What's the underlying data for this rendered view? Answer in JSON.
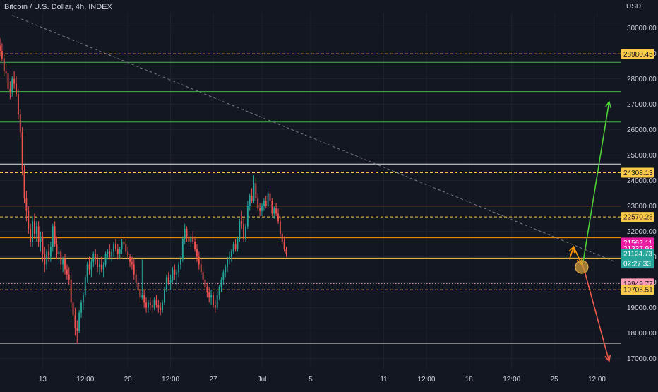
{
  "chart_data": {
    "type": "candlestick",
    "title": "Bitcoin / U.S. Dollar, 4h, INDEX",
    "currency": "USD",
    "ylim": [
      16600,
      30600
    ],
    "y_ticks": [
      17000,
      18000,
      19000,
      20000,
      21000,
      22000,
      23000,
      24000,
      25000,
      26000,
      27000,
      28000,
      29000,
      30000
    ],
    "y_tick_labels": [
      "17000.00",
      "18000.00",
      "19000.00",
      "20000.00",
      "21000.00",
      "22000.00",
      "23000.00",
      "24000.00",
      "25000.00",
      "26000.00",
      "27000.00",
      "28000.00",
      "29000.00",
      "30000.00"
    ],
    "x_labels": [
      {
        "label": "13",
        "t": "2022-06-13T00:00"
      },
      {
        "label": "12:00",
        "t": "2022-06-16T12:00"
      },
      {
        "label": "20",
        "t": "2022-06-20T00:00"
      },
      {
        "label": "12:00",
        "t": "2022-06-23T12:00"
      },
      {
        "label": "27",
        "t": "2022-06-27T00:00"
      },
      {
        "label": "Jul",
        "t": "2022-07-01T00:00"
      },
      {
        "label": "5",
        "t": "2022-07-05T00:00"
      },
      {
        "label": "11",
        "t": "2022-07-11T00:00"
      },
      {
        "label": "12:00",
        "t": "2022-07-14T12:00"
      },
      {
        "label": "18",
        "t": "2022-07-18T00:00"
      },
      {
        "label": "12:00",
        "t": "2022-07-21T12:00"
      },
      {
        "label": "25",
        "t": "2022-07-25T00:00"
      },
      {
        "label": "12:00",
        "t": "2022-07-28T12:00"
      }
    ],
    "x_range": [
      "2022-06-09T12:00",
      "2022-07-30T12:00"
    ],
    "candles": {
      "start": "2022-06-09T12:00",
      "interval_hours": 4,
      "ohlc": [
        [
          29300,
          29600,
          28900,
          29100
        ],
        [
          29100,
          29400,
          28700,
          28800
        ],
        [
          28800,
          29000,
          28100,
          28300
        ],
        [
          28300,
          28600,
          27900,
          28200
        ],
        [
          28200,
          28400,
          27400,
          27600
        ],
        [
          27600,
          27900,
          27200,
          27500
        ],
        [
          27500,
          28100,
          27300,
          28000
        ],
        [
          28000,
          28300,
          27600,
          27800
        ],
        [
          27800,
          28100,
          27300,
          27400
        ],
        [
          27400,
          27600,
          26400,
          26600
        ],
        [
          26600,
          26800,
          25700,
          25900
        ],
        [
          25900,
          26100,
          24200,
          24400
        ],
        [
          24400,
          24600,
          23100,
          23300
        ],
        [
          23300,
          23600,
          22400,
          22800
        ],
        [
          22800,
          23000,
          21900,
          22100
        ],
        [
          22100,
          22300,
          21400,
          21600
        ],
        [
          21600,
          22600,
          21400,
          22400
        ],
        [
          22400,
          22700,
          21700,
          21900
        ],
        [
          21900,
          22400,
          21600,
          22200
        ],
        [
          22200,
          22400,
          21400,
          21600
        ],
        [
          21600,
          22000,
          21200,
          21800
        ],
        [
          21800,
          22000,
          20800,
          21100
        ],
        [
          21100,
          21400,
          20400,
          20700
        ],
        [
          20700,
          21300,
          20500,
          21200
        ],
        [
          21200,
          21500,
          20800,
          21000
        ],
        [
          21000,
          21600,
          20800,
          21400
        ],
        [
          21400,
          22300,
          21200,
          22200
        ],
        [
          22200,
          22400,
          21400,
          21500
        ],
        [
          21500,
          21800,
          20900,
          21100
        ],
        [
          21100,
          21400,
          20700,
          21200
        ],
        [
          21200,
          21300,
          20500,
          20700
        ],
        [
          20700,
          21000,
          20400,
          20900
        ],
        [
          20900,
          21100,
          20300,
          20500
        ],
        [
          20500,
          20700,
          20100,
          20300
        ],
        [
          20300,
          20600,
          19900,
          20100
        ],
        [
          20100,
          20400,
          19000,
          19200
        ],
        [
          19200,
          19400,
          18500,
          18700
        ],
        [
          18700,
          19000,
          17900,
          18200
        ],
        [
          18200,
          18500,
          17600,
          18100
        ],
        [
          18100,
          18900,
          18000,
          18800
        ],
        [
          18800,
          19300,
          18600,
          19200
        ],
        [
          19200,
          19600,
          18900,
          19500
        ],
        [
          19500,
          20300,
          19400,
          20200
        ],
        [
          20200,
          20800,
          20000,
          20700
        ],
        [
          20700,
          21000,
          20300,
          20500
        ],
        [
          20500,
          20900,
          20200,
          20800
        ],
        [
          20800,
          21200,
          20600,
          21100
        ],
        [
          21100,
          21300,
          20700,
          20900
        ],
        [
          20900,
          21100,
          20400,
          20600
        ],
        [
          20600,
          20900,
          20300,
          20700
        ],
        [
          20700,
          21000,
          20400,
          20500
        ],
        [
          20500,
          20800,
          20200,
          20700
        ],
        [
          20700,
          21200,
          20600,
          21100
        ],
        [
          21100,
          21300,
          20900,
          21200
        ],
        [
          21200,
          21500,
          20900,
          21000
        ],
        [
          21000,
          21300,
          20800,
          21200
        ],
        [
          21200,
          21600,
          21000,
          21500
        ],
        [
          21500,
          21700,
          21200,
          21300
        ],
        [
          21300,
          21500,
          20900,
          21100
        ],
        [
          21100,
          21400,
          20900,
          21300
        ],
        [
          21300,
          21700,
          21100,
          21600
        ],
        [
          21600,
          21900,
          21400,
          21500
        ],
        [
          21500,
          21700,
          21100,
          21200
        ],
        [
          21200,
          21400,
          20900,
          21000
        ],
        [
          21000,
          21100,
          20600,
          20800
        ],
        [
          20800,
          21000,
          20500,
          20700
        ],
        [
          20700,
          20900,
          20100,
          20300
        ],
        [
          20300,
          20500,
          19800,
          20000
        ],
        [
          20000,
          20200,
          19600,
          19700
        ],
        [
          19700,
          19900,
          19200,
          19400
        ],
        [
          19400,
          20900,
          19300,
          19500
        ],
        [
          19500,
          19700,
          19000,
          19200
        ],
        [
          19200,
          19400,
          18800,
          19000
        ],
        [
          19000,
          19300,
          18800,
          19200
        ],
        [
          19200,
          19400,
          18900,
          19100
        ],
        [
          19100,
          19300,
          18800,
          19000
        ],
        [
          19000,
          19400,
          18900,
          19300
        ],
        [
          19300,
          19500,
          19000,
          19100
        ],
        [
          19100,
          19300,
          18800,
          19000
        ],
        [
          19000,
          19200,
          18700,
          18900
        ],
        [
          18900,
          19300,
          18800,
          19200
        ],
        [
          19200,
          19800,
          19100,
          19700
        ],
        [
          19700,
          20300,
          19600,
          20200
        ],
        [
          20200,
          20400,
          19900,
          20000
        ],
        [
          20000,
          20300,
          19700,
          20100
        ],
        [
          20100,
          20600,
          20000,
          20500
        ],
        [
          20500,
          20700,
          20100,
          20300
        ],
        [
          20300,
          20500,
          19900,
          20400
        ],
        [
          20400,
          20800,
          20200,
          20700
        ],
        [
          20700,
          21000,
          20500,
          20900
        ],
        [
          20900,
          21800,
          20800,
          21700
        ],
        [
          21700,
          22300,
          21500,
          22100
        ],
        [
          22100,
          22200,
          21600,
          21800
        ],
        [
          21800,
          22000,
          21400,
          21600
        ],
        [
          21600,
          21900,
          21400,
          21800
        ],
        [
          21800,
          22000,
          21500,
          21600
        ],
        [
          21600,
          21800,
          21200,
          21300
        ],
        [
          21300,
          21500,
          20800,
          21000
        ],
        [
          21000,
          21200,
          20500,
          20700
        ],
        [
          20700,
          20900,
          20300,
          20400
        ],
        [
          20400,
          20600,
          19900,
          20100
        ],
        [
          20100,
          20300,
          19700,
          19800
        ],
        [
          19800,
          20000,
          19400,
          19600
        ],
        [
          19600,
          19800,
          19200,
          19400
        ],
        [
          19400,
          19700,
          19100,
          19500
        ],
        [
          19500,
          19600,
          19000,
          19100
        ],
        [
          19100,
          19300,
          18800,
          19000
        ],
        [
          19000,
          19600,
          18900,
          19500
        ],
        [
          19500,
          19900,
          19300,
          19800
        ],
        [
          19800,
          20200,
          19600,
          20100
        ],
        [
          20100,
          20500,
          19900,
          20400
        ],
        [
          20400,
          20700,
          20200,
          20600
        ],
        [
          20600,
          21000,
          20400,
          20900
        ],
        [
          20900,
          21200,
          20700,
          21000
        ],
        [
          21000,
          21300,
          20800,
          21200
        ],
        [
          21200,
          21600,
          21100,
          21500
        ],
        [
          21500,
          21700,
          21200,
          21300
        ],
        [
          21300,
          21800,
          21200,
          21700
        ],
        [
          21700,
          22500,
          21600,
          22400
        ],
        [
          22400,
          22800,
          22100,
          22300
        ],
        [
          22300,
          22500,
          21600,
          21700
        ],
        [
          21700,
          22300,
          21600,
          22200
        ],
        [
          22200,
          23200,
          22100,
          23000
        ],
        [
          23000,
          23500,
          22800,
          23400
        ],
        [
          23400,
          23700,
          23100,
          23200
        ],
        [
          23200,
          24200,
          23100,
          23900
        ],
        [
          23900,
          24100,
          23200,
          23300
        ],
        [
          23300,
          23500,
          22800,
          22900
        ],
        [
          22900,
          23100,
          22600,
          22800
        ],
        [
          22800,
          23100,
          22600,
          23000
        ],
        [
          23000,
          23300,
          22800,
          23200
        ],
        [
          23200,
          23400,
          22900,
          23000
        ],
        [
          23000,
          23600,
          22900,
          23500
        ],
        [
          23500,
          23700,
          23100,
          23200
        ],
        [
          23200,
          23300,
          22600,
          22700
        ],
        [
          22700,
          23000,
          22500,
          22900
        ],
        [
          22900,
          23100,
          22600,
          22700
        ],
        [
          22700,
          22900,
          22300,
          22400
        ],
        [
          22400,
          22600,
          21800,
          21900
        ],
        [
          21900,
          22000,
          21500,
          21600
        ],
        [
          21600,
          21800,
          21200,
          21300
        ],
        [
          21300,
          21400,
          21000,
          21125
        ]
      ]
    },
    "horizontal_levels": [
      {
        "price": 28980.45,
        "color": "#f9c94a",
        "style": "dashed",
        "label": "28980.45"
      },
      {
        "price": 28650,
        "color": "#4caf50",
        "style": "solid"
      },
      {
        "price": 27500,
        "color": "#4caf50",
        "style": "solid"
      },
      {
        "price": 26300,
        "color": "#4caf50",
        "style": "solid"
      },
      {
        "price": 24650,
        "color": "#e8e8e8",
        "style": "solid"
      },
      {
        "price": 24308.13,
        "color": "#f9c94a",
        "style": "dashed",
        "label": "24308.13"
      },
      {
        "price": 23000,
        "color": "#ff9800",
        "style": "solid"
      },
      {
        "price": 22570.28,
        "color": "#f9c94a",
        "style": "dashed",
        "label": "22570.28"
      },
      {
        "price": 21750,
        "color": "#ff9800",
        "style": "solid"
      },
      {
        "price": 20950,
        "color": "#f9c94a",
        "style": "solid"
      },
      {
        "price": 19949.77,
        "color": "#ff9eb6",
        "style": "dotted",
        "label": "19949.77"
      },
      {
        "price": 19705.51,
        "color": "#f9c94a",
        "style": "dashed",
        "label": "19705.51"
      },
      {
        "price": 17600,
        "color": "#e8e8e8",
        "style": "solid"
      }
    ],
    "price_markers": [
      {
        "label": "21562.11",
        "price": 21562.11,
        "bg": "#e91ea3",
        "fg": "#ffffff"
      },
      {
        "label": "21337.93",
        "price": 21337.93,
        "bg": "#e91ea3",
        "fg": "#ffffff"
      },
      {
        "label": "21124.73",
        "price": 21124.73,
        "bg": "#26a69a",
        "fg": "#ffffff"
      }
    ],
    "countdown": "02:27:33",
    "trendline": {
      "from": {
        "t": "2022-06-10T12:00",
        "price": 30500
      },
      "to": {
        "t": "2022-07-30T00:00",
        "price": 20800
      },
      "color": "#787b86",
      "style": "dashed"
    },
    "arrows": [
      {
        "from": {
          "t": "2022-07-27T08:00",
          "price": 20700
        },
        "to": {
          "t": "2022-07-29T12:00",
          "price": 27100
        },
        "color": "#4cd137"
      },
      {
        "from": {
          "t": "2022-07-27T08:00",
          "price": 20700
        },
        "to": {
          "t": "2022-07-29T12:00",
          "price": 16900
        },
        "color": "#f05a4c"
      },
      {
        "from": {
          "t": "2022-07-26T06:00",
          "price": 20900
        },
        "to": {
          "t": "2022-07-26T14:00",
          "price": 21400
        },
        "color": "#ff9800"
      },
      {
        "from": {
          "t": "2022-07-26T14:00",
          "price": 21400
        },
        "to": {
          "t": "2022-07-27T06:00",
          "price": 20700
        },
        "color": "#ff9800"
      }
    ],
    "highlight_circle": {
      "t": "2022-07-27T06:00",
      "price": 20600,
      "color": "#c99a3a"
    },
    "colors": {
      "up": "#26a69a",
      "down": "#ef5350",
      "grid": "#1e222d",
      "text": "#d1d4dc",
      "label_gold": "#f9c94a",
      "label_pink": "#ff9eb6"
    }
  }
}
